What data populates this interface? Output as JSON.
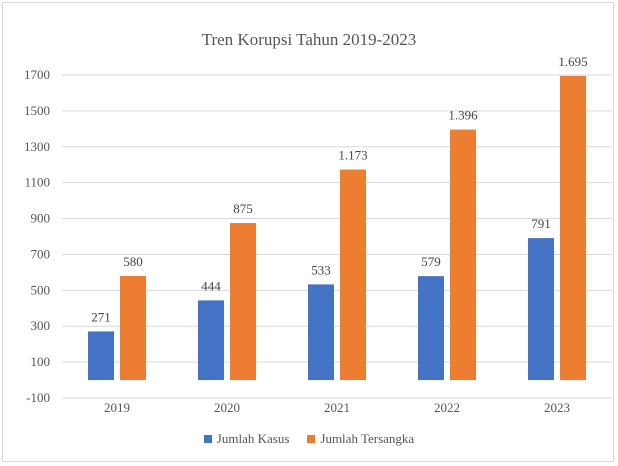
{
  "chart_data": {
    "type": "bar",
    "title": "Tren Korupsi Tahun 2019-2023",
    "categories": [
      "2019",
      "2020",
      "2021",
      "2022",
      "2023"
    ],
    "series": [
      {
        "name": "Jumlah Kasus",
        "values": [
          271,
          444,
          533,
          579,
          791
        ],
        "labels": [
          "271",
          "444",
          "533",
          "579",
          "791"
        ],
        "color": "#4472c4"
      },
      {
        "name": "Jumlah Tersangka",
        "values": [
          580,
          875,
          1173,
          1396,
          1695
        ],
        "labels": [
          "580",
          "875",
          "1.173",
          "1.396",
          "1.695"
        ],
        "color": "#ed7d31"
      }
    ],
    "yticks": [
      "1700",
      "1500",
      "1300",
      "1100",
      "900",
      "700",
      "500",
      "300",
      "100",
      "-100"
    ],
    "ylim": [
      -100,
      1700
    ],
    "grid": true,
    "legend": "bottom"
  }
}
